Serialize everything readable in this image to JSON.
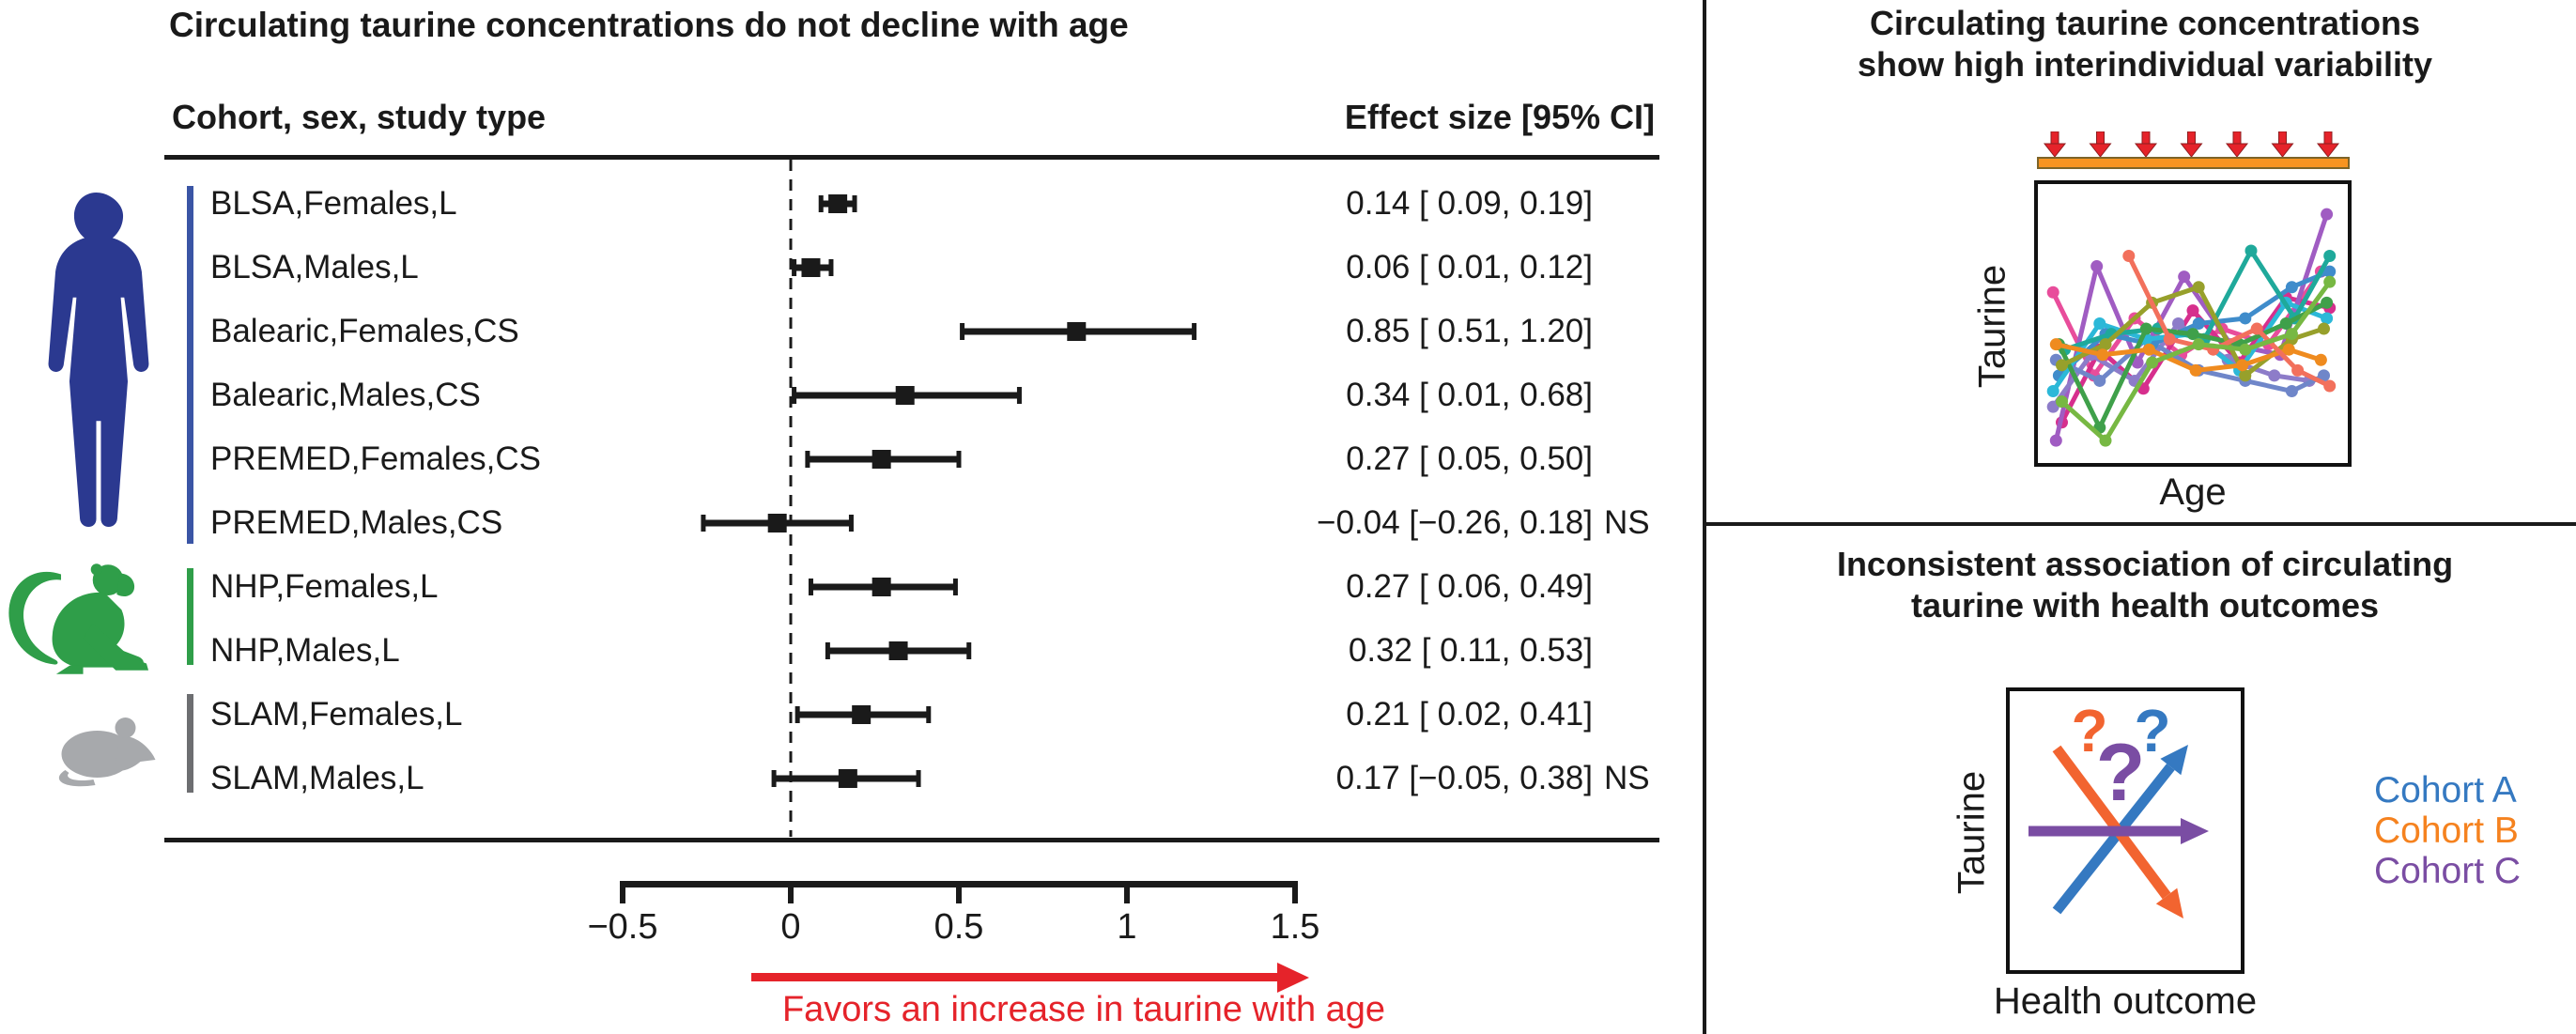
{
  "colors": {
    "black": "#1a1a1a",
    "red": "#e5232a",
    "red_dark": "#8c1d1f",
    "human_blue": "#2b3990",
    "group_blue": "#3a55a5",
    "monkey_green": "#2f9e49",
    "mouse_gray": "#a7a9ac",
    "group_gray": "#6d6e71",
    "orange_bar": "#f79421",
    "orange_bar_border": "#7d6428",
    "cohort_a_blue": "#3579c1",
    "cohort_b_orange": "#f5821f",
    "cohort_c_purple": "#7a4da3",
    "assoc_orange": "#f26430"
  },
  "left_panel": {
    "title": "Circulating taurine concentrations do not decline with age",
    "col_header_left": "Cohort, sex, study type",
    "col_header_right": "Effect size [95% CI]",
    "favors_text": "Favors an increase in taurine with age",
    "species_icons": [
      "human",
      "monkey",
      "mouse"
    ]
  },
  "top_right_panel": {
    "title_line1": "Circulating taurine concentrations",
    "title_line2": "show high interindividual variability",
    "ylabel": "Taurine",
    "xlabel": "Age",
    "arrow_count": 7
  },
  "bottom_right_panel": {
    "title_line1": "Inconsistent association of circulating",
    "title_line2": "taurine with health outcomes",
    "ylabel": "Taurine",
    "xlabel": "Health outcome",
    "legend": [
      {
        "label": "Cohort A",
        "color": "#3579c1"
      },
      {
        "label": "Cohort B",
        "color": "#f5821f"
      },
      {
        "label": "Cohort C",
        "color": "#7a4da3"
      }
    ]
  },
  "chart_data": [
    {
      "type": "scatter",
      "subtype": "forest-plot",
      "title": "Circulating taurine concentrations do not decline with age",
      "categories": [
        "BLSA,Females,L",
        "BLSA,Males,L",
        "Balearic,Females,CS",
        "Balearic,Males,CS",
        "PREMED,Females,CS",
        "PREMED,Males,CS",
        "NHP,Females,L",
        "NHP,Males,L",
        "SLAM,Females,L",
        "SLAM,Males,L"
      ],
      "effect": [
        0.14,
        0.06,
        0.85,
        0.34,
        0.27,
        -0.04,
        0.27,
        0.32,
        0.21,
        0.17
      ],
      "ci_low": [
        0.09,
        0.01,
        0.51,
        0.01,
        0.05,
        -0.26,
        0.06,
        0.11,
        0.02,
        -0.05
      ],
      "ci_high": [
        0.19,
        0.12,
        1.2,
        0.68,
        0.5,
        0.18,
        0.49,
        0.53,
        0.41,
        0.38
      ],
      "ci_text": [
        "0.14 [ 0.09, 0.19]",
        "0.06 [ 0.01, 0.12]",
        "0.85 [ 0.51, 1.20]",
        "0.34 [ 0.01, 0.68]",
        "0.27 [ 0.05, 0.50]",
        "−0.04 [−0.26, 0.18]",
        "0.27 [ 0.06, 0.49]",
        "0.32 [ 0.11, 0.53]",
        "0.21 [ 0.02, 0.41]",
        "0.17 [−0.05, 0.38]"
      ],
      "ns": [
        "",
        "",
        "",
        "",
        "",
        "NS",
        "",
        "",
        "",
        "NS"
      ],
      "xlim": [
        -0.5,
        1.5
      ],
      "xticks": [
        -0.5,
        0,
        0.5,
        1,
        1.5
      ],
      "xtick_labels": [
        "−0.5",
        "0",
        "0.5",
        "1",
        "1.5"
      ],
      "zero_line": "dashed",
      "annotation": "Favors an increase in taurine with age",
      "groups": [
        {
          "species": "human",
          "row_start": 0,
          "row_end": 5,
          "bar_color": "#3a55a5"
        },
        {
          "species": "monkey-NHP",
          "row_start": 6,
          "row_end": 7,
          "bar_color": "#2f9e49"
        },
        {
          "species": "mouse-SLAM",
          "row_start": 8,
          "row_end": 9,
          "bar_color": "#6d6e71"
        }
      ]
    },
    {
      "type": "line",
      "subtype": "conceptual-spaghetti",
      "title": "Circulating taurine concentrations show high interindividual variability",
      "xlabel": "Age",
      "ylabel": "Taurine",
      "axis_values_shown": false,
      "series": [
        {
          "color": "#e84d9b",
          "points": [
            [
              0.02,
              0.62
            ],
            [
              0.16,
              0.3
            ],
            [
              0.3,
              0.52
            ],
            [
              0.46,
              0.38
            ],
            [
              0.6,
              0.48
            ],
            [
              0.76,
              0.42
            ],
            [
              0.94,
              0.7
            ]
          ]
        },
        {
          "color": "#d62f8d",
          "points": [
            [
              0.05,
              0.12
            ],
            [
              0.18,
              0.4
            ],
            [
              0.33,
              0.25
            ],
            [
              0.5,
              0.55
            ],
            [
              0.66,
              0.35
            ],
            [
              0.82,
              0.6
            ],
            [
              0.97,
              0.56
            ]
          ]
        },
        {
          "color": "#a05cc2",
          "points": [
            [
              0.03,
              0.05
            ],
            [
              0.17,
              0.72
            ],
            [
              0.31,
              0.35
            ],
            [
              0.47,
              0.68
            ],
            [
              0.63,
              0.42
            ],
            [
              0.8,
              0.38
            ],
            [
              0.96,
              0.92
            ]
          ]
        },
        {
          "color": "#8d7cc9",
          "points": [
            [
              0.02,
              0.18
            ],
            [
              0.15,
              0.38
            ],
            [
              0.3,
              0.28
            ],
            [
              0.45,
              0.5
            ],
            [
              0.62,
              0.36
            ],
            [
              0.78,
              0.3
            ],
            [
              0.9,
              0.28
            ]
          ]
        },
        {
          "color": "#6f86c9",
          "points": [
            [
              0.03,
              0.36
            ],
            [
              0.18,
              0.28
            ],
            [
              0.34,
              0.44
            ],
            [
              0.52,
              0.32
            ],
            [
              0.68,
              0.28
            ],
            [
              0.84,
              0.24
            ],
            [
              0.95,
              0.3
            ]
          ]
        },
        {
          "color": "#3f8ccb",
          "points": [
            [
              0.04,
              0.3
            ],
            [
              0.2,
              0.46
            ],
            [
              0.36,
              0.42
            ],
            [
              0.52,
              0.5
            ],
            [
              0.68,
              0.52
            ],
            [
              0.84,
              0.64
            ],
            [
              0.97,
              0.7
            ]
          ]
        },
        {
          "color": "#2cb8d8",
          "points": [
            [
              0.02,
              0.24
            ],
            [
              0.18,
              0.5
            ],
            [
              0.34,
              0.44
            ],
            [
              0.5,
              0.46
            ],
            [
              0.66,
              0.32
            ],
            [
              0.82,
              0.58
            ],
            [
              0.96,
              0.52
            ]
          ]
        },
        {
          "color": "#1fa99b",
          "points": [
            [
              0.06,
              0.4
            ],
            [
              0.22,
              0.46
            ],
            [
              0.38,
              0.48
            ],
            [
              0.54,
              0.44
            ],
            [
              0.7,
              0.78
            ],
            [
              0.85,
              0.52
            ],
            [
              0.97,
              0.76
            ]
          ]
        },
        {
          "color": "#3fa04a",
          "points": [
            [
              0.04,
              0.42
            ],
            [
              0.18,
              0.1
            ],
            [
              0.34,
              0.48
            ],
            [
              0.5,
              0.46
            ],
            [
              0.66,
              0.42
            ],
            [
              0.82,
              0.5
            ],
            [
              0.96,
              0.58
            ]
          ]
        },
        {
          "color": "#97a02b",
          "points": [
            [
              0.05,
              0.34
            ],
            [
              0.2,
              0.42
            ],
            [
              0.36,
              0.58
            ],
            [
              0.52,
              0.64
            ],
            [
              0.68,
              0.3
            ],
            [
              0.84,
              0.44
            ],
            [
              0.95,
              0.48
            ]
          ]
        },
        {
          "color": "#ef8b1f",
          "points": [
            [
              0.03,
              0.42
            ],
            [
              0.19,
              0.38
            ],
            [
              0.35,
              0.4
            ],
            [
              0.51,
              0.32
            ],
            [
              0.67,
              0.34
            ],
            [
              0.83,
              0.4
            ],
            [
              0.94,
              0.36
            ]
          ]
        },
        {
          "color": "#f2705c",
          "points": [
            [
              0.28,
              0.76
            ],
            [
              0.42,
              0.44
            ],
            [
              0.57,
              0.4
            ],
            [
              0.72,
              0.48
            ],
            [
              0.86,
              0.32
            ],
            [
              0.97,
              0.26
            ]
          ]
        },
        {
          "color": "#77b843",
          "points": [
            [
              0.05,
              0.2
            ],
            [
              0.2,
              0.05
            ],
            [
              0.36,
              0.35
            ],
            [
              0.52,
              0.42
            ],
            [
              0.68,
              0.4
            ],
            [
              0.84,
              0.46
            ],
            [
              0.97,
              0.66
            ]
          ]
        }
      ]
    },
    {
      "type": "line",
      "subtype": "conceptual-association",
      "title": "Inconsistent association of circulating taurine with health outcomes",
      "xlabel": "Health outcome",
      "ylabel": "Taurine",
      "series": [
        {
          "name": "Cohort A",
          "color": "#3579c1",
          "direction": "positive",
          "x1": 50,
          "y1": 234,
          "x2": 190,
          "y2": 57
        },
        {
          "name": "Cohort B",
          "color": "#f26430",
          "direction": "negative",
          "x1": 50,
          "y1": 61,
          "x2": 185,
          "y2": 242
        },
        {
          "name": "Cohort C",
          "color": "#7a4da3",
          "direction": "flat",
          "x1": 20,
          "y1": 149,
          "x2": 212,
          "y2": 149
        }
      ],
      "question_marks": [
        {
          "char": "?",
          "color": "#f26430",
          "x": 85,
          "y": 64,
          "size": 64
        },
        {
          "char": "?",
          "color": "#7a4da3",
          "x": 118,
          "y": 116,
          "size": 86
        },
        {
          "char": "?",
          "color": "#3579c1",
          "x": 152,
          "y": 64,
          "size": 64
        }
      ]
    }
  ]
}
